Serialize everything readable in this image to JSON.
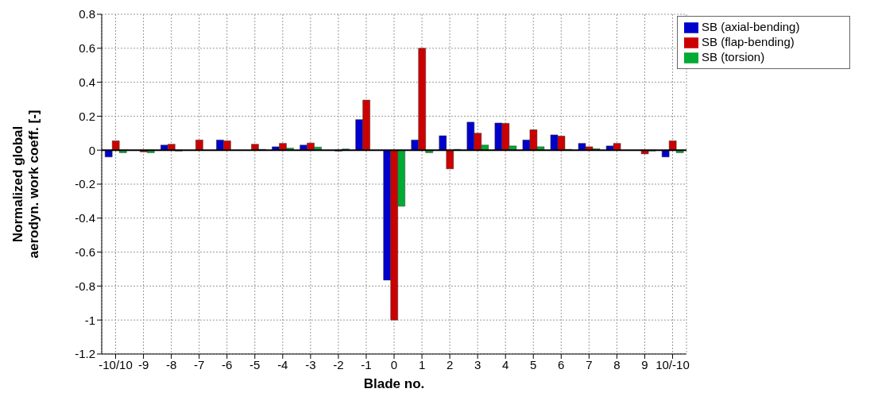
{
  "chart_data": {
    "type": "bar",
    "xlabel": "Blade no.",
    "ylabel": "Normalized global\naerodyn. work coeff. [-]",
    "categories": [
      "-10/10",
      "-9",
      "-8",
      "-7",
      "-6",
      "-5",
      "-4",
      "-3",
      "-2",
      "-1",
      "0",
      "1",
      "2",
      "3",
      "4",
      "5",
      "6",
      "7",
      "8",
      "9",
      "10/-10"
    ],
    "series": [
      {
        "name": "SB (axial-bending)",
        "color": "#0000cc",
        "values": [
          -0.04,
          null,
          0.03,
          0,
          0.06,
          null,
          0.02,
          0.03,
          null,
          0.18,
          -0.765,
          0.06,
          0.085,
          0.165,
          0.16,
          0.06,
          0.09,
          0.04,
          0.025,
          0,
          -0.04
        ]
      },
      {
        "name": "SB (flap-bending)",
        "color": "#cc0000",
        "values": [
          0.055,
          -0.01,
          0.035,
          0.06,
          0.055,
          0.035,
          0.04,
          0.042,
          -0.005,
          0.295,
          -1.0,
          0.6,
          -0.11,
          0.1,
          0.158,
          0.12,
          0.083,
          0.02,
          0.04,
          -0.022,
          0.055
        ]
      },
      {
        "name": "SB (torsion)",
        "color": "#00aa33",
        "values": [
          -0.015,
          -0.015,
          -0.005,
          0,
          0,
          0.005,
          0.012,
          0.018,
          0.007,
          null,
          -0.33,
          -0.015,
          0.005,
          0.03,
          0.025,
          0.02,
          0.005,
          0.008,
          null,
          -0.005,
          -0.015
        ]
      }
    ],
    "ylim": [
      -1.2,
      0.8
    ],
    "yticks": [
      -1.2,
      -1,
      -0.8,
      -0.6,
      -0.4,
      -0.2,
      0,
      0.2,
      0.4,
      0.6,
      0.8
    ],
    "grid": true,
    "legend": "top right"
  }
}
